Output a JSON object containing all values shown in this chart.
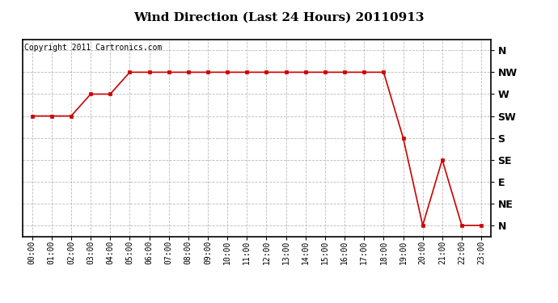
{
  "title": "Wind Direction (Last 24 Hours) 20110913",
  "copyright": "Copyright 2011 Cartronics.com",
  "x_labels": [
    "00:00",
    "01:00",
    "02:00",
    "03:00",
    "04:00",
    "05:00",
    "06:00",
    "07:00",
    "08:00",
    "09:00",
    "10:00",
    "11:00",
    "12:00",
    "13:00",
    "14:00",
    "15:00",
    "16:00",
    "17:00",
    "18:00",
    "19:00",
    "20:00",
    "21:00",
    "22:00",
    "23:00"
  ],
  "y_labels": [
    "N",
    "NE",
    "E",
    "SE",
    "S",
    "SW",
    "W",
    "NW",
    "N"
  ],
  "y_values": [
    0,
    1,
    2,
    3,
    4,
    5,
    6,
    7,
    8
  ],
  "wind_data": {
    "00:00": 5,
    "01:00": 5,
    "02:00": 5,
    "03:00": 6,
    "04:00": 6,
    "05:00": 7,
    "06:00": 7,
    "07:00": 7,
    "08:00": 7,
    "09:00": 7,
    "10:00": 7,
    "11:00": 7,
    "12:00": 7,
    "13:00": 7,
    "14:00": 7,
    "15:00": 7,
    "16:00": 7,
    "17:00": 7,
    "18:00": 7,
    "19:00": 4,
    "20:00": 0,
    "21:00": 3,
    "22:00": 0,
    "23:00": 0
  },
  "line_color": "#cc0000",
  "marker": "s",
  "marker_size": 3,
  "bg_color": "#ffffff",
  "plot_bg_color": "#ffffff",
  "grid_color": "#aaaaaa",
  "grid_style": "--",
  "title_fontsize": 11,
  "copyright_fontsize": 7,
  "tick_fontsize": 7,
  "ytick_fontsize": 9
}
